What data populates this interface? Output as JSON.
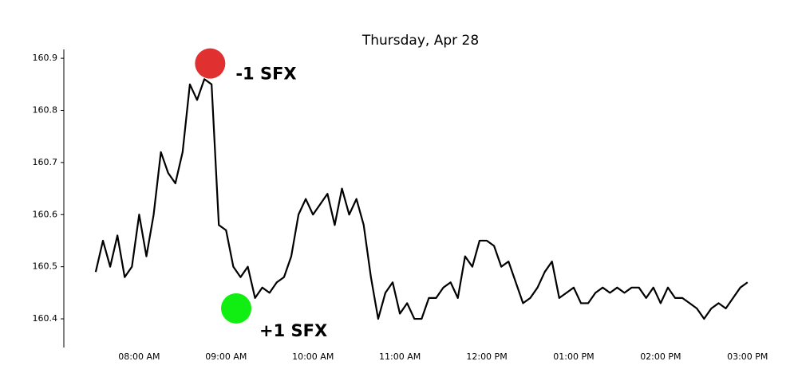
{
  "chart_data": {
    "type": "line",
    "title": "Thursday, Apr 28",
    "x": [
      450,
      455,
      460,
      465,
      470,
      475,
      480,
      485,
      490,
      495,
      500,
      505,
      510,
      515,
      520,
      525,
      530,
      535,
      540,
      545,
      550,
      555,
      560,
      565,
      570,
      575,
      580,
      585,
      590,
      595,
      600,
      605,
      610,
      615,
      620,
      625,
      630,
      635,
      640,
      645,
      650,
      655,
      660,
      665,
      670,
      675,
      680,
      685,
      690,
      695,
      700,
      705,
      710,
      715,
      720,
      725,
      730,
      735,
      740,
      745,
      750,
      755,
      760,
      765,
      770,
      775,
      780,
      785,
      790,
      795,
      800,
      805,
      810,
      815,
      820,
      825,
      830,
      835,
      840,
      845,
      850,
      855,
      860,
      865,
      870,
      875,
      880,
      885,
      890,
      895,
      900
    ],
    "series": [
      {
        "color": "#000000",
        "values": [
          160.49,
          160.55,
          160.5,
          160.56,
          160.48,
          160.5,
          160.6,
          160.52,
          160.6,
          160.72,
          160.68,
          160.66,
          160.72,
          160.85,
          160.82,
          160.86,
          160.85,
          160.58,
          160.57,
          160.5,
          160.48,
          160.5,
          160.44,
          160.46,
          160.45,
          160.47,
          160.48,
          160.52,
          160.6,
          160.63,
          160.6,
          160.62,
          160.64,
          160.58,
          160.65,
          160.6,
          160.63,
          160.58,
          160.48,
          160.4,
          160.45,
          160.47,
          160.41,
          160.43,
          160.4,
          160.4,
          160.44,
          160.44,
          160.46,
          160.47,
          160.44,
          160.52,
          160.5,
          160.55,
          160.55,
          160.54,
          160.5,
          160.51,
          160.47,
          160.43,
          160.44,
          160.46,
          160.49,
          160.51,
          160.44,
          160.45,
          160.46,
          160.43,
          160.43,
          160.45,
          160.46,
          160.45,
          160.46,
          160.45,
          160.46,
          160.46,
          160.44,
          160.46,
          160.43,
          160.46,
          160.44,
          160.44,
          160.43,
          160.42,
          160.4,
          160.42,
          160.43,
          160.42,
          160.44,
          160.46,
          160.47
        ]
      }
    ],
    "xlim": [
      428,
      915
    ],
    "ylim": [
      160.345,
      160.917
    ],
    "xticks": [
      {
        "value": 480,
        "label": "08:00 AM"
      },
      {
        "value": 540,
        "label": "09:00 AM"
      },
      {
        "value": 600,
        "label": "10:00 AM"
      },
      {
        "value": 660,
        "label": "11:00 AM"
      },
      {
        "value": 720,
        "label": "12:00 PM"
      },
      {
        "value": 780,
        "label": "01:00 PM"
      },
      {
        "value": 840,
        "label": "02:00 PM"
      },
      {
        "value": 900,
        "label": "03:00 PM"
      }
    ],
    "yticks": [
      160.4,
      160.5,
      160.6,
      160.7,
      160.8,
      160.9
    ],
    "annotations": [
      {
        "text": "-1 SFX",
        "x": 529,
        "y": 160.89,
        "color": "#e03030"
      },
      {
        "text": "+1 SFX",
        "x": 547,
        "y": 160.42,
        "color": "#11ee11"
      }
    ]
  }
}
